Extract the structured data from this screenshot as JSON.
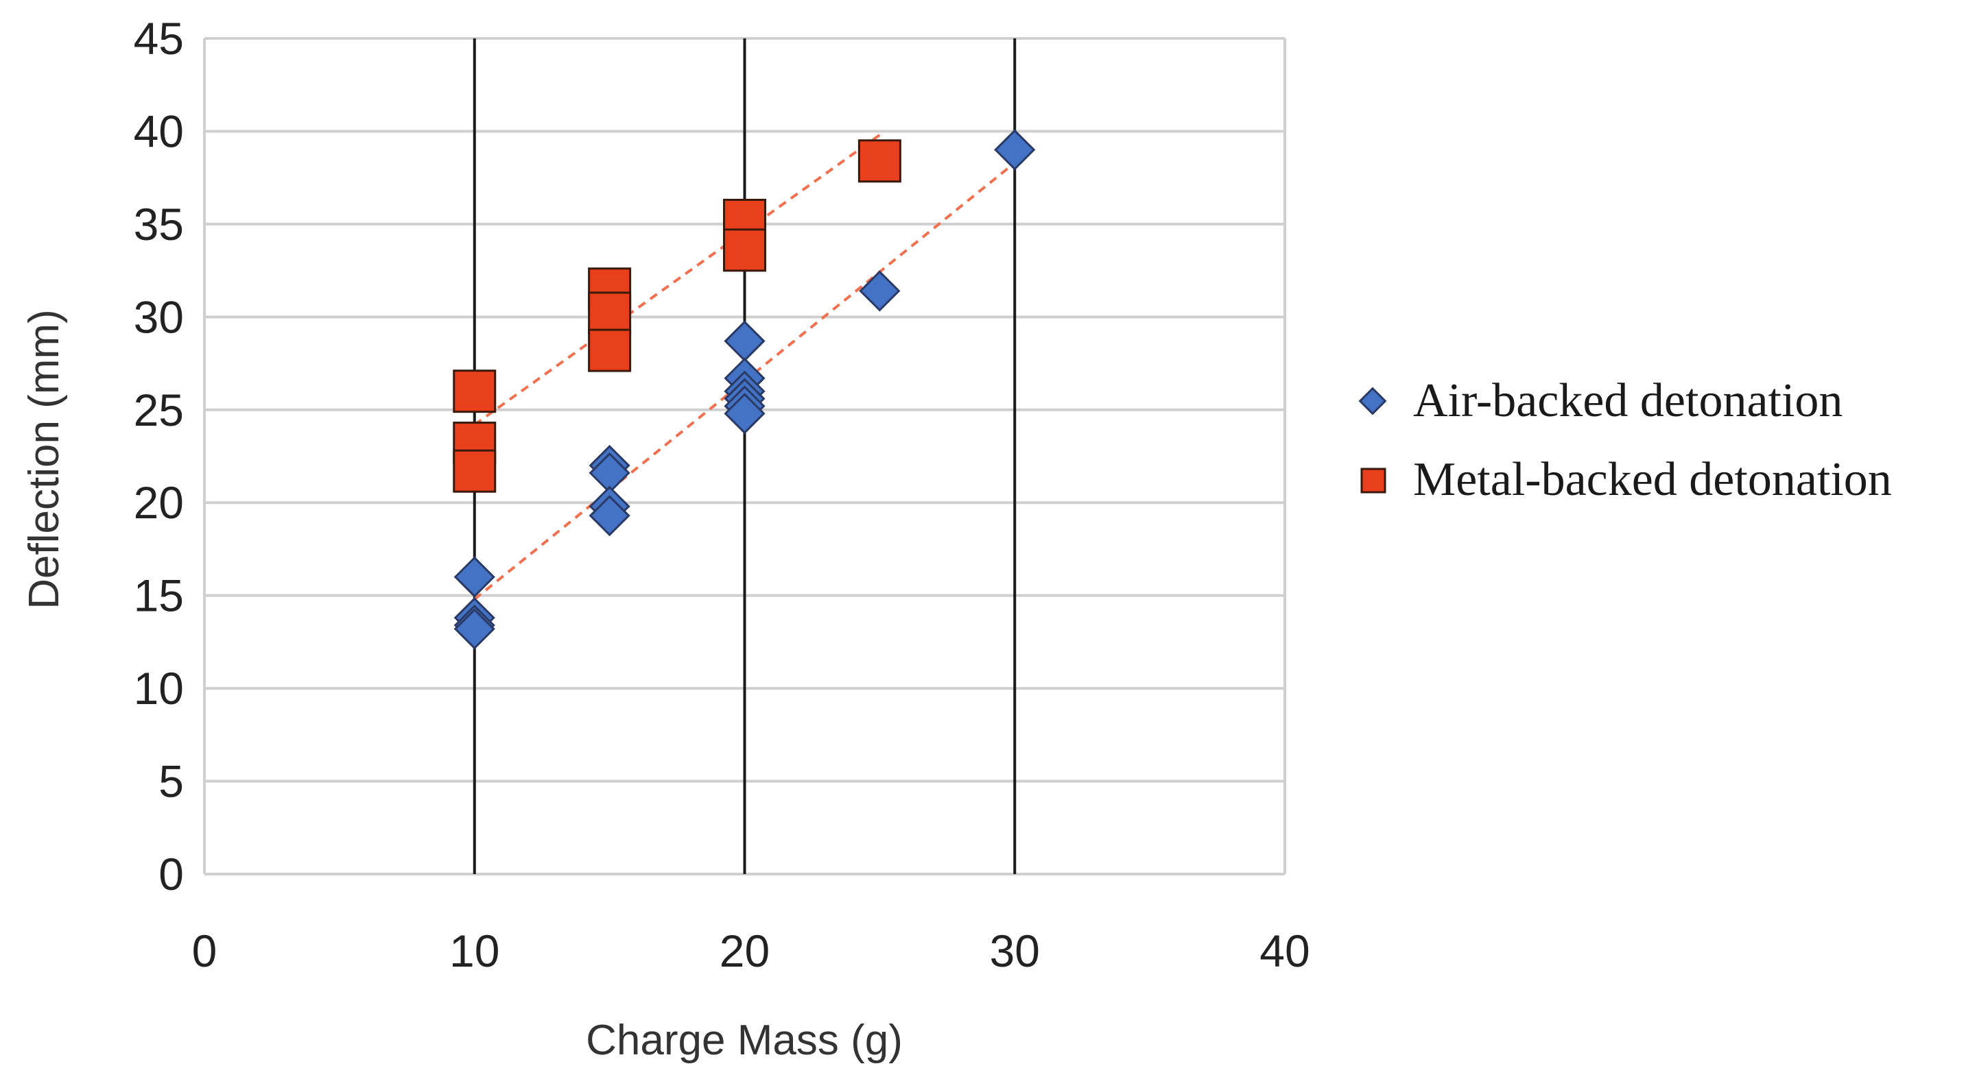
{
  "chart_data": {
    "type": "scatter",
    "title": "",
    "xlabel": "Charge Mass (g)",
    "ylabel": "Deflection (mm)",
    "xlim": [
      0,
      40
    ],
    "ylim": [
      0,
      45
    ],
    "x_ticks": [
      0,
      10,
      20,
      30,
      40
    ],
    "y_ticks": [
      0,
      5,
      10,
      15,
      20,
      25,
      30,
      35,
      40,
      45
    ],
    "grid": "horizontal gridlines; dark vertical gridlines at x = 10, 20, 30",
    "legend_position": "right",
    "series": [
      {
        "name": "Air-backed detonation",
        "marker": "diamond",
        "color": "#4472c4",
        "points": [
          [
            10,
            16.0
          ],
          [
            10,
            13.8
          ],
          [
            10,
            13.4
          ],
          [
            10,
            13.2
          ],
          [
            15,
            22.0
          ],
          [
            15,
            21.6
          ],
          [
            15,
            19.8
          ],
          [
            15,
            19.3
          ],
          [
            20,
            28.7
          ],
          [
            20,
            26.7
          ],
          [
            20,
            26.0
          ],
          [
            20,
            25.6
          ],
          [
            20,
            25.2
          ],
          [
            20,
            24.8
          ],
          [
            25,
            31.4
          ],
          [
            30,
            39.0
          ]
        ],
        "trendline": {
          "style": "dashed",
          "color": "#f07050",
          "x": [
            10,
            30
          ],
          "y": [
            14.8,
            38.3
          ]
        }
      },
      {
        "name": "Metal-backed detonation",
        "marker": "square",
        "color": "#e8401c",
        "points": [
          [
            10,
            26.0
          ],
          [
            10,
            23.2
          ],
          [
            10,
            21.7
          ],
          [
            15,
            31.5
          ],
          [
            15,
            30.2
          ],
          [
            15,
            28.2
          ],
          [
            20,
            35.2
          ],
          [
            20,
            33.6
          ],
          [
            25,
            38.4
          ]
        ],
        "trendline": {
          "style": "dashed",
          "color": "#f07050",
          "x": [
            10,
            25
          ],
          "y": [
            24.2,
            39.8
          ]
        }
      }
    ]
  }
}
